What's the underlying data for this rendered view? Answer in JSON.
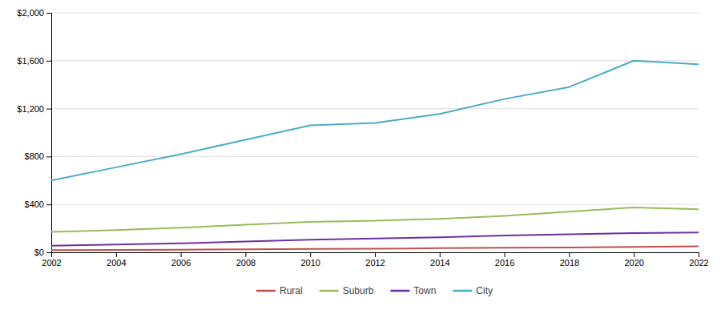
{
  "chart_data": {
    "type": "line",
    "x": [
      2002,
      2004,
      2006,
      2008,
      2010,
      2012,
      2014,
      2016,
      2018,
      2020,
      2022
    ],
    "series": [
      {
        "name": "Rural",
        "color": "#c0504d",
        "values": [
          18,
          20,
          22,
          25,
          28,
          30,
          35,
          38,
          40,
          45,
          50
        ]
      },
      {
        "name": "Suburb",
        "color": "#9bbb59",
        "values": [
          170,
          185,
          205,
          230,
          255,
          265,
          280,
          305,
          340,
          375,
          360
        ]
      },
      {
        "name": "Town",
        "color": "#7030a0",
        "values": [
          55,
          65,
          75,
          90,
          105,
          115,
          125,
          140,
          150,
          160,
          165
        ]
      },
      {
        "name": "City",
        "color": "#4bacc6",
        "values": [
          600,
          710,
          820,
          940,
          1060,
          1080,
          1155,
          1280,
          1380,
          1600,
          1570
        ]
      }
    ],
    "xlim": [
      2002,
      2022
    ],
    "xticks": [
      2002,
      2004,
      2006,
      2008,
      2010,
      2012,
      2014,
      2016,
      2018,
      2020,
      2022
    ],
    "ylim": [
      0,
      2000
    ],
    "yticks": [
      {
        "value": 0,
        "label": "$0"
      },
      {
        "value": 400,
        "label": "$400"
      },
      {
        "value": 800,
        "label": "$800"
      },
      {
        "value": 1200,
        "label": "$1,200"
      },
      {
        "value": 1600,
        "label": "$1,600"
      },
      {
        "value": 2000,
        "label": "$2,000"
      }
    ],
    "grid": true,
    "legend": "bottom"
  }
}
